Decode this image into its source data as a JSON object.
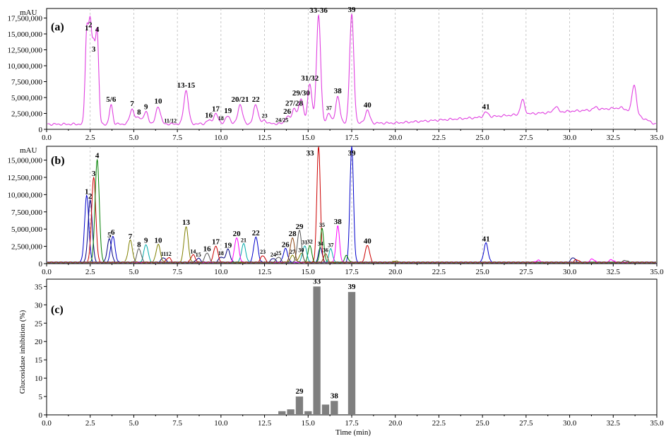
{
  "panels": {
    "a": {
      "tag": "(a)",
      "unit": "mAU"
    },
    "b": {
      "tag": "(b)",
      "unit": "mAU"
    },
    "c": {
      "tag": "(c)",
      "ylabel": "Glucosidase inhibition (%)",
      "xlabel": "Time (min)"
    }
  },
  "colors": {
    "a_trace": "#e040e0",
    "bars": "#7f7f7f",
    "b_traces": [
      "#0000cc",
      "#000080",
      "#cc0000",
      "#007f00",
      "#808000",
      "#00aaaa",
      "#ff00ff",
      "#555555",
      "#8b4513"
    ]
  },
  "chart_data": [
    {
      "type": "line",
      "panel": "a",
      "xlim": [
        0,
        35
      ],
      "ylim": [
        0,
        19000000
      ],
      "x_ticks": [
        "0.0",
        "2.5",
        "5.0",
        "7.5",
        "10.0",
        "12.5",
        "15.0",
        "17.5",
        "20.0",
        "22.5",
        "25.0",
        "27.5",
        "30.0",
        "32.5",
        "35.0"
      ],
      "y_ticks": [
        "17,500,000",
        "15,000,000",
        "12,500,000",
        "10,000,000",
        "7,500,000",
        "5,000,000",
        "2,500,000",
        "0"
      ],
      "grid": "x dashed",
      "peaks": [
        {
          "label": "1",
          "x": 2.3,
          "y": 15100000
        },
        {
          "label": "2",
          "x": 2.5,
          "y": 15600000
        },
        {
          "label": "3",
          "x": 2.7,
          "y": 11800000
        },
        {
          "label": "4",
          "x": 2.9,
          "y": 14900000
        },
        {
          "label": "5/6",
          "x": 3.7,
          "y": 3900000
        },
        {
          "label": "7",
          "x": 4.9,
          "y": 3200000
        },
        {
          "label": "8",
          "x": 5.3,
          "y": 1900000
        },
        {
          "label": "9",
          "x": 5.7,
          "y": 2700000
        },
        {
          "label": "10",
          "x": 6.4,
          "y": 3600000
        },
        {
          "label": "11/12",
          "x": 7.1,
          "y": 600000
        },
        {
          "label": "13-15",
          "x": 8.0,
          "y": 6100000
        },
        {
          "label": "16",
          "x": 9.3,
          "y": 1400000
        },
        {
          "label": "17",
          "x": 9.7,
          "y": 2400000
        },
        {
          "label": "18",
          "x": 10.0,
          "y": 1000000
        },
        {
          "label": "19",
          "x": 10.4,
          "y": 2100000
        },
        {
          "label": "20/21",
          "x": 11.1,
          "y": 3900000
        },
        {
          "label": "22",
          "x": 12.0,
          "y": 3900000
        },
        {
          "label": "23",
          "x": 12.5,
          "y": 1400000
        },
        {
          "label": "24/25",
          "x": 13.5,
          "y": 700000
        },
        {
          "label": "26",
          "x": 13.8,
          "y": 2000000
        },
        {
          "label": "27/28",
          "x": 14.2,
          "y": 3300000
        },
        {
          "label": "29/30",
          "x": 14.6,
          "y": 4900000
        },
        {
          "label": "31/32",
          "x": 15.1,
          "y": 7200000
        },
        {
          "label": "33-36",
          "x": 15.6,
          "y": 17900000
        },
        {
          "label": "37",
          "x": 16.2,
          "y": 2600000
        },
        {
          "label": "38",
          "x": 16.7,
          "y": 5200000
        },
        {
          "label": "39",
          "x": 17.5,
          "y": 18000000
        },
        {
          "label": "40",
          "x": 18.4,
          "y": 3000000
        },
        {
          "label": "41",
          "x": 25.2,
          "y": 2700000
        }
      ],
      "baseline": [
        [
          0,
          800000
        ],
        [
          15,
          900000
        ],
        [
          20,
          1000000
        ],
        [
          25,
          1900000
        ],
        [
          28,
          2500000
        ],
        [
          31,
          3000000
        ],
        [
          33,
          3400000
        ],
        [
          35,
          700000
        ]
      ],
      "late_peaks": [
        [
          27.3,
          4600000
        ],
        [
          33.7,
          7100000
        ],
        [
          29.2,
          3600000
        ],
        [
          31.5,
          3500000
        ]
      ]
    },
    {
      "type": "line",
      "panel": "b",
      "xlim": [
        0,
        35
      ],
      "ylim": [
        0,
        17000000
      ],
      "x_ticks": [
        "0.0",
        "2.5",
        "5.0",
        "7.5",
        "10.0",
        "12.5",
        "15.0",
        "17.5",
        "20.0",
        "22.5",
        "25.0",
        "27.5",
        "30.0",
        "32.5",
        "35.0"
      ],
      "y_ticks": [
        "15,000,000",
        "12,500,000",
        "10,000,000",
        "7,500,000",
        "5,000,000",
        "2,500,000",
        "0"
      ],
      "grid": "x dashed",
      "peaks": [
        {
          "label": "1",
          "x": 2.3,
          "y": 9700000,
          "c": 0
        },
        {
          "label": "2",
          "x": 2.5,
          "y": 9000000,
          "c": 1
        },
        {
          "label": "3",
          "x": 2.7,
          "y": 12300000,
          "c": 2
        },
        {
          "label": "4",
          "x": 2.9,
          "y": 14900000,
          "c": 3
        },
        {
          "label": "5",
          "x": 3.6,
          "y": 3400000,
          "c": 1
        },
        {
          "label": "6",
          "x": 3.8,
          "y": 3800000,
          "c": 0
        },
        {
          "label": "7",
          "x": 4.8,
          "y": 3200000,
          "c": 4
        },
        {
          "label": "8",
          "x": 5.3,
          "y": 2000000,
          "c": 7
        },
        {
          "label": "9",
          "x": 5.7,
          "y": 2600000,
          "c": 5
        },
        {
          "label": "10",
          "x": 6.4,
          "y": 2600000,
          "c": 4
        },
        {
          "label": "11",
          "x": 6.7,
          "y": 700000,
          "c": 1
        },
        {
          "label": "12",
          "x": 7.0,
          "y": 700000,
          "c": 2
        },
        {
          "label": "13",
          "x": 8.0,
          "y": 5200000,
          "c": 4
        },
        {
          "label": "14",
          "x": 8.4,
          "y": 1100000,
          "c": 2
        },
        {
          "label": "15",
          "x": 8.7,
          "y": 600000,
          "c": 1
        },
        {
          "label": "16",
          "x": 9.2,
          "y": 1400000,
          "c": 7
        },
        {
          "label": "17",
          "x": 9.7,
          "y": 2400000,
          "c": 2
        },
        {
          "label": "18",
          "x": 10.0,
          "y": 800000,
          "c": 1
        },
        {
          "label": "19",
          "x": 10.4,
          "y": 1900000,
          "c": 1
        },
        {
          "label": "20",
          "x": 10.9,
          "y": 3600000,
          "c": 6
        },
        {
          "label": "21",
          "x": 11.3,
          "y": 2700000,
          "c": 5
        },
        {
          "label": "22",
          "x": 12.0,
          "y": 3700000,
          "c": 0
        },
        {
          "label": "23",
          "x": 12.4,
          "y": 1000000,
          "c": 2
        },
        {
          "label": "24",
          "x": 13.0,
          "y": 600000,
          "c": 1
        },
        {
          "label": "25",
          "x": 13.3,
          "y": 800000,
          "c": 7
        },
        {
          "label": "26",
          "x": 13.7,
          "y": 2000000,
          "c": 0
        },
        {
          "label": "27",
          "x": 14.1,
          "y": 1000000,
          "c": 4
        },
        {
          "label": "28",
          "x": 14.1,
          "y": 3600000,
          "c": 8
        },
        {
          "label": "29",
          "x": 14.5,
          "y": 4600000,
          "c": 7
        },
        {
          "label": "30",
          "x": 14.6,
          "y": 1300000,
          "c": 4
        },
        {
          "label": "31",
          "x": 14.8,
          "y": 2400000,
          "c": 5
        },
        {
          "label": "32",
          "x": 15.1,
          "y": 2500000,
          "c": 3
        },
        {
          "label": "33",
          "x": 15.6,
          "y": 16800000,
          "c": 2
        },
        {
          "label": "34",
          "x": 15.7,
          "y": 2200000,
          "c": 1
        },
        {
          "label": "35",
          "x": 15.8,
          "y": 4900000,
          "c": 3
        },
        {
          "label": "36",
          "x": 16.0,
          "y": 1300000,
          "c": 8
        },
        {
          "label": "37",
          "x": 16.3,
          "y": 2000000,
          "c": 5
        },
        {
          "label": "38",
          "x": 16.7,
          "y": 5300000,
          "c": 6
        },
        {
          "label": "39",
          "x": 17.5,
          "y": 16900000,
          "c": 0
        },
        {
          "label": "40",
          "x": 18.4,
          "y": 2500000,
          "c": 2
        },
        {
          "label": "41",
          "x": 25.2,
          "y": 2800000,
          "c": 0
        }
      ],
      "small_peaks": [
        [
          30.2,
          700000,
          1
        ],
        [
          31.3,
          500000,
          6
        ],
        [
          30.4,
          400000,
          2
        ],
        [
          32.4,
          400000,
          6
        ],
        [
          33.2,
          300000,
          7
        ],
        [
          28.2,
          300000,
          6
        ],
        [
          17.2,
          1000000,
          3
        ],
        [
          20.0,
          200000,
          4
        ]
      ]
    },
    {
      "type": "bar",
      "panel": "c",
      "xlabel": "Time (min)",
      "ylabel": "Glucosidase inhibition (%)",
      "xlim": [
        0,
        35
      ],
      "ylim": [
        0,
        37
      ],
      "x_ticks": [
        "0.0",
        "2.5",
        "5.0",
        "7.5",
        "10.0",
        "12.5",
        "15.0",
        "17.5",
        "20.0",
        "22.5",
        "25.0",
        "27.5",
        "30.0",
        "32.5",
        "35.0"
      ],
      "y_ticks": [
        "35",
        "30",
        "25",
        "20",
        "15",
        "10",
        "5",
        "0"
      ],
      "bar_width": 0.5,
      "bars": [
        {
          "x": 13.5,
          "value": 1.0,
          "label": ""
        },
        {
          "x": 14.0,
          "value": 1.5,
          "label": ""
        },
        {
          "x": 14.5,
          "value": 5.0,
          "label": "29"
        },
        {
          "x": 15.0,
          "value": 1.0,
          "label": ""
        },
        {
          "x": 15.5,
          "value": 35.0,
          "label": "33"
        },
        {
          "x": 16.0,
          "value": 2.8,
          "label": ""
        },
        {
          "x": 16.5,
          "value": 3.8,
          "label": "38"
        },
        {
          "x": 17.5,
          "value": 33.5,
          "label": "39"
        }
      ]
    }
  ]
}
